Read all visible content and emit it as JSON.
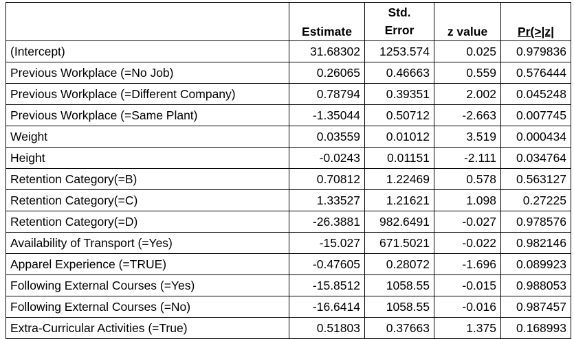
{
  "table": {
    "headers": [
      "",
      "Estimate",
      "Std. Error",
      "z value",
      "Pr(>|z|"
    ],
    "rows": [
      {
        "label": "(Intercept)",
        "estimate": "31.68302",
        "std_error": "1253.574",
        "z_value": "0.025",
        "p_value": "0.979836"
      },
      {
        "label": "Previous Workplace (=No Job)",
        "estimate": "0.26065",
        "std_error": "0.46663",
        "z_value": "0.559",
        "p_value": "0.576444"
      },
      {
        "label": "Previous Workplace (=Different Company)",
        "estimate": "0.78794",
        "std_error": "0.39351",
        "z_value": "2.002",
        "p_value": "0.045248"
      },
      {
        "label": "Previous Workplace (=Same Plant)",
        "estimate": "-1.35044",
        "std_error": "0.50712",
        "z_value": "-2.663",
        "p_value": "0.007745"
      },
      {
        "label": "Weight",
        "estimate": "0.03559",
        "std_error": "0.01012",
        "z_value": "3.519",
        "p_value": "0.000434"
      },
      {
        "label": "Height",
        "estimate": "-0.0243",
        "std_error": "0.01151",
        "z_value": "-2.111",
        "p_value": "0.034764"
      },
      {
        "label": "Retention Category(=B)",
        "estimate": "0.70812",
        "std_error": "1.22469",
        "z_value": "0.578",
        "p_value": "0.563127"
      },
      {
        "label": "Retention Category(=C)",
        "estimate": "1.33527",
        "std_error": "1.21621",
        "z_value": "1.098",
        "p_value": "0.27225"
      },
      {
        "label": "Retention Category(=D)",
        "estimate": "-26.3881",
        "std_error": "982.6491",
        "z_value": "-0.027",
        "p_value": "0.978576"
      },
      {
        "label": "Availability of Transport (=Yes)",
        "estimate": "-15.027",
        "std_error": "671.5021",
        "z_value": "-0.022",
        "p_value": "0.982146"
      },
      {
        "label": "Apparel Experience (=TRUE)",
        "estimate": "-0.47605",
        "std_error": "0.28072",
        "z_value": "-1.696",
        "p_value": "0.089923"
      },
      {
        "label": "Following External Courses (=Yes)",
        "estimate": "-15.8512",
        "std_error": "1058.55",
        "z_value": "-0.015",
        "p_value": "0.988053"
      },
      {
        "label": "Following External Courses (=No)",
        "estimate": "-16.6414",
        "std_error": "1058.55",
        "z_value": "-0.016",
        "p_value": "0.987457"
      },
      {
        "label": "Extra-Curricular Activities (=True)",
        "estimate": "0.51803",
        "std_error": "0.37663",
        "z_value": "1.375",
        "p_value": "0.168993"
      }
    ]
  }
}
